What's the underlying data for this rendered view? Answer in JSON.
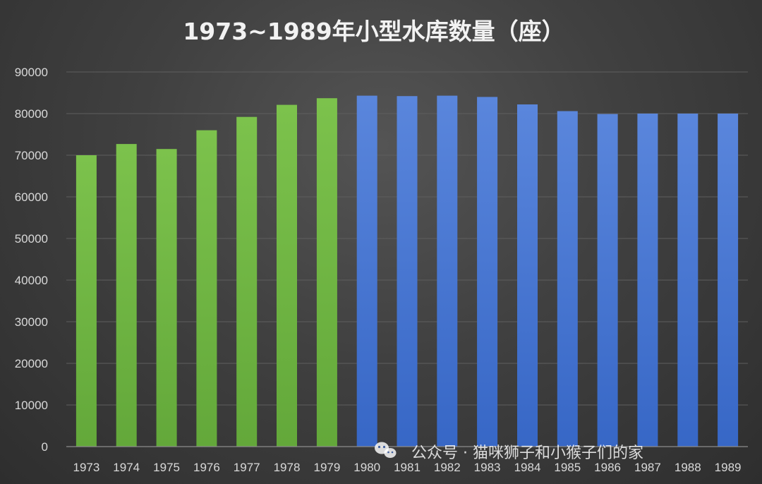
{
  "chart_data": {
    "type": "bar",
    "title": "1973~1989年小型水库数量（座）",
    "xlabel": "",
    "ylabel": "",
    "categories": [
      "1973",
      "1974",
      "1975",
      "1976",
      "1977",
      "1978",
      "1979",
      "1980",
      "1981",
      "1982",
      "1983",
      "1984",
      "1985",
      "1986",
      "1987",
      "1988",
      "1989"
    ],
    "values": [
      70000,
      72700,
      71500,
      76000,
      79200,
      82100,
      83700,
      84300,
      84200,
      84300,
      84000,
      82200,
      80600,
      79900,
      80000,
      80000,
      80000
    ],
    "bar_colors": [
      "#72b844",
      "#72b844",
      "#72b844",
      "#72b844",
      "#72b844",
      "#72b844",
      "#72b844",
      "#4a78d4",
      "#4a78d4",
      "#4a78d4",
      "#4a78d4",
      "#4a78d4",
      "#4a78d4",
      "#4a78d4",
      "#4a78d4",
      "#4a78d4",
      "#4a78d4"
    ],
    "ylim": [
      0,
      90000
    ],
    "yticks": [
      0,
      10000,
      20000,
      30000,
      40000,
      50000,
      60000,
      70000,
      80000,
      90000
    ],
    "ytick_labels": [
      "0",
      "10000",
      "20000",
      "30000",
      "40000",
      "50000",
      "60000",
      "70000",
      "80000",
      "90000"
    ],
    "grid": true,
    "legend": "none"
  },
  "watermark": {
    "text": "公众号 · 猫咪狮子和小猴子们的家",
    "icon": "wechat-icon"
  },
  "colors": {
    "background": "#404040",
    "green_bar": "#72b844",
    "blue_bar": "#4a78d4",
    "text": "#d9d9d9",
    "grid": "#5e5e5e"
  }
}
